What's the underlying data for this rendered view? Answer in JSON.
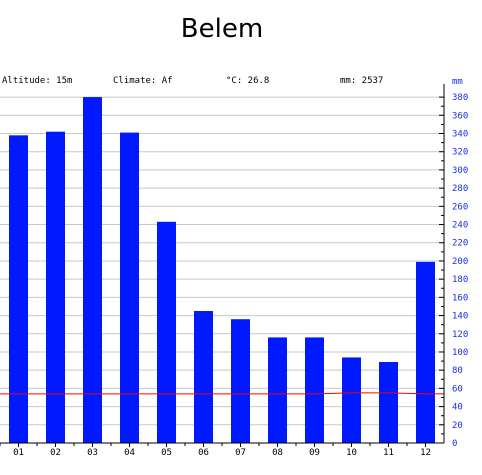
{
  "title": "Belem",
  "info": {
    "altitude": "Altitude: 15m",
    "climate": "Climate: Af",
    "temperature": "°C: 26.8",
    "precipitation": "mm: 2537"
  },
  "colors": {
    "bars": "#0019ff",
    "temperature_line": "#ff0000",
    "axis_text": "#1530e0",
    "grid": "#c8c8c8"
  },
  "chart_data": {
    "type": "bar",
    "title": "Belem",
    "categories": [
      "01",
      "02",
      "03",
      "04",
      "05",
      "06",
      "07",
      "08",
      "09",
      "10",
      "11",
      "12"
    ],
    "series": [
      {
        "values": [
          338,
          342,
          380,
          341,
          243,
          145,
          136,
          116,
          116,
          94,
          89,
          199
        ]
      },
      {
        "type": "line",
        "values": [
          54,
          54,
          54,
          54,
          54,
          54,
          54,
          54,
          54,
          55,
          55,
          54
        ]
      }
    ],
    "ylabel": "mm",
    "ylim": [
      0,
      390
    ],
    "yticks": [
      0,
      20,
      40,
      60,
      80,
      100,
      120,
      140,
      160,
      180,
      200,
      220,
      240,
      260,
      280,
      300,
      320,
      340,
      360,
      380
    ],
    "grid": true
  }
}
